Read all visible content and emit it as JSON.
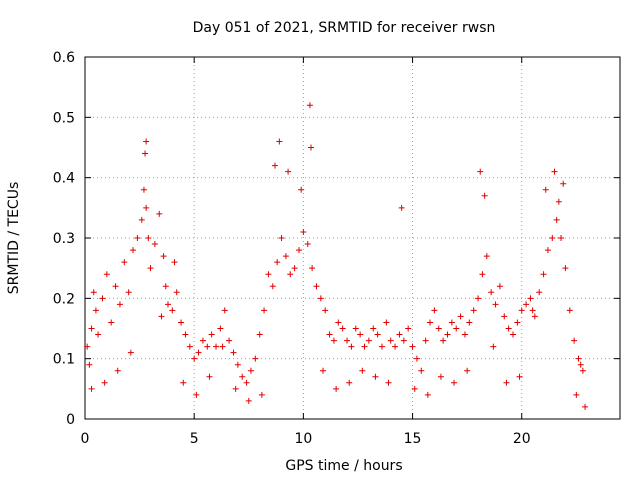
{
  "chart_data": {
    "type": "scatter",
    "title": "Day 051 of 2021, SRMTID for receiver rwsn",
    "xlabel": "GPS time / hours",
    "ylabel": "SRMTID / TECUs",
    "xlim": [
      0,
      24.5
    ],
    "ylim": [
      0,
      0.6
    ],
    "xticks": [
      0,
      5,
      10,
      15,
      20
    ],
    "xtick_labels": [
      "0",
      "5",
      "10",
      "15",
      "20"
    ],
    "yticks": [
      0,
      0.1,
      0.2,
      0.3,
      0.4,
      0.5,
      0.6
    ],
    "ytick_labels": [
      "0",
      "0.1",
      "0.2",
      "0.3",
      "0.4",
      "0.5",
      "0.6"
    ],
    "grid": true,
    "marker": "+",
    "series": [
      {
        "name": "SRMTID",
        "color": "#e00000",
        "x": [
          0.1,
          0.2,
          0.3,
          0.4,
          0.5,
          0.6,
          0.8,
          1.0,
          1.2,
          1.4,
          1.6,
          1.8,
          2.0,
          2.2,
          2.4,
          2.6,
          2.7,
          2.8,
          2.9,
          3.0,
          3.2,
          3.4,
          3.6,
          3.7,
          3.8,
          4.0,
          4.2,
          4.4,
          4.6,
          4.8,
          5.0,
          5.2,
          5.4,
          5.6,
          5.8,
          6.0,
          6.2,
          6.4,
          6.6,
          6.8,
          7.0,
          7.2,
          7.4,
          7.6,
          7.8,
          8.0,
          8.2,
          8.4,
          8.6,
          8.8,
          9.0,
          9.2,
          9.4,
          9.6,
          9.8,
          10.0,
          10.2,
          10.4,
          10.6,
          10.8,
          11.0,
          11.2,
          11.4,
          11.6,
          11.8,
          12.0,
          12.2,
          12.4,
          12.6,
          12.8,
          13.0,
          13.2,
          13.4,
          13.6,
          13.8,
          14.0,
          14.2,
          14.4,
          14.6,
          14.8,
          15.0,
          15.2,
          15.4,
          15.6,
          15.8,
          16.0,
          16.2,
          16.4,
          16.6,
          16.8,
          17.0,
          17.2,
          17.4,
          17.6,
          17.8,
          18.0,
          18.2,
          18.4,
          18.6,
          18.8,
          19.0,
          19.2,
          19.4,
          19.6,
          19.8,
          20.0,
          20.2,
          20.4,
          20.6,
          20.8,
          21.0,
          21.2,
          21.4,
          21.6,
          21.7,
          21.8,
          22.0,
          22.2,
          22.4,
          22.6,
          22.7,
          22.8,
          0.3,
          0.9,
          1.5,
          2.1,
          2.75,
          2.8,
          3.5,
          4.1,
          4.5,
          5.1,
          5.7,
          6.3,
          6.9,
          7.5,
          8.1,
          8.7,
          8.9,
          9.3,
          9.9,
          10.3,
          10.35,
          10.9,
          11.5,
          12.1,
          12.7,
          13.3,
          13.9,
          14.5,
          15.1,
          15.7,
          16.3,
          16.9,
          17.5,
          18.1,
          18.3,
          18.7,
          19.3,
          19.9,
          20.5,
          21.1,
          21.5,
          21.9,
          22.5,
          22.9
        ],
        "y": [
          0.12,
          0.09,
          0.15,
          0.21,
          0.18,
          0.14,
          0.2,
          0.24,
          0.16,
          0.22,
          0.19,
          0.26,
          0.21,
          0.28,
          0.3,
          0.33,
          0.38,
          0.35,
          0.3,
          0.25,
          0.29,
          0.34,
          0.27,
          0.22,
          0.19,
          0.18,
          0.21,
          0.16,
          0.14,
          0.12,
          0.1,
          0.11,
          0.13,
          0.12,
          0.14,
          0.12,
          0.15,
          0.18,
          0.13,
          0.11,
          0.09,
          0.07,
          0.06,
          0.08,
          0.1,
          0.14,
          0.18,
          0.24,
          0.22,
          0.26,
          0.3,
          0.27,
          0.24,
          0.25,
          0.28,
          0.31,
          0.29,
          0.25,
          0.22,
          0.2,
          0.18,
          0.14,
          0.13,
          0.16,
          0.15,
          0.13,
          0.12,
          0.15,
          0.14,
          0.12,
          0.13,
          0.15,
          0.14,
          0.12,
          0.16,
          0.13,
          0.12,
          0.14,
          0.13,
          0.15,
          0.12,
          0.1,
          0.08,
          0.13,
          0.16,
          0.18,
          0.15,
          0.13,
          0.14,
          0.16,
          0.15,
          0.17,
          0.14,
          0.16,
          0.18,
          0.2,
          0.24,
          0.27,
          0.21,
          0.19,
          0.22,
          0.17,
          0.15,
          0.14,
          0.16,
          0.18,
          0.19,
          0.2,
          0.17,
          0.21,
          0.24,
          0.28,
          0.3,
          0.33,
          0.36,
          0.3,
          0.25,
          0.18,
          0.13,
          0.1,
          0.09,
          0.08,
          0.05,
          0.06,
          0.08,
          0.11,
          0.44,
          0.46,
          0.17,
          0.26,
          0.06,
          0.04,
          0.07,
          0.12,
          0.05,
          0.03,
          0.04,
          0.42,
          0.46,
          0.41,
          0.38,
          0.52,
          0.45,
          0.08,
          0.05,
          0.06,
          0.08,
          0.07,
          0.06,
          0.35,
          0.05,
          0.04,
          0.07,
          0.06,
          0.08,
          0.41,
          0.37,
          0.12,
          0.06,
          0.07,
          0.18,
          0.38,
          0.41,
          0.39,
          0.04,
          0.02
        ]
      }
    ]
  }
}
